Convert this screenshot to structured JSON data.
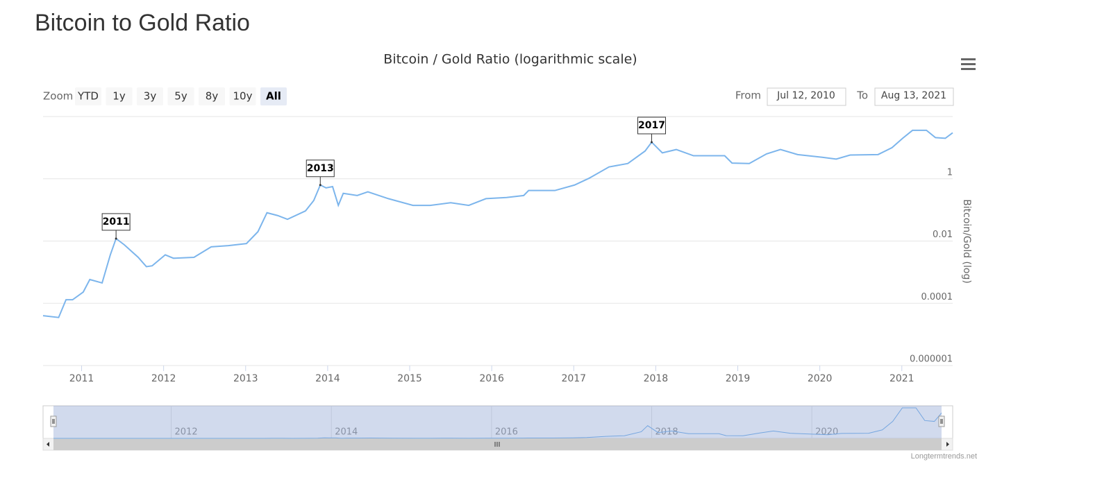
{
  "page": {
    "title": "Bitcoin to Gold Ratio"
  },
  "range_selector": {
    "zoom_label": "Zoom",
    "buttons": [
      "YTD",
      "1y",
      "3y",
      "5y",
      "8y",
      "10y",
      "All"
    ],
    "selected_button": 6,
    "from_label": "From",
    "from": "Jul 12, 2010",
    "to_label": "To",
    "to": "Aug 13, 2021"
  },
  "chart_data": {
    "type": "line",
    "title": "Bitcoin / Gold Ratio (logarithmic scale)",
    "y_label": "Bitcoin/Gold (log)",
    "y_scale": "log",
    "grid": true,
    "color": "#7cb5ec",
    "x": [
      2010.53,
      2010.72,
      2010.81,
      2010.89,
      2011.02,
      2011.1,
      2011.25,
      2011.35,
      2011.42,
      2011.52,
      2011.69,
      2011.79,
      2011.86,
      2012.02,
      2012.12,
      2012.37,
      2012.58,
      2012.79,
      2013.01,
      2013.15,
      2013.26,
      2013.39,
      2013.51,
      2013.73,
      2013.83,
      2013.91,
      2013.98,
      2014.06,
      2014.13,
      2014.19,
      2014.36,
      2014.49,
      2014.74,
      2015.04,
      2015.25,
      2015.5,
      2015.72,
      2015.93,
      2016.18,
      2016.39,
      2016.45,
      2016.77,
      2017.01,
      2017.19,
      2017.43,
      2017.66,
      2017.87,
      2017.95,
      2018.08,
      2018.25,
      2018.46,
      2018.84,
      2018.93,
      2019.14,
      2019.35,
      2019.52,
      2019.73,
      2020.03,
      2020.2,
      2020.37,
      2020.71,
      2020.88,
      2021.01,
      2021.13,
      2021.3,
      2021.41,
      2021.53,
      2021.62
    ],
    "values": [
      4e-05,
      3.5e-05,
      0.00013,
      0.00013,
      0.00023,
      0.00058,
      0.00045,
      0.0036,
      0.012,
      0.0076,
      0.003,
      0.0015,
      0.0016,
      0.0036,
      0.0028,
      0.003,
      0.0065,
      0.0071,
      0.0083,
      0.02,
      0.081,
      0.066,
      0.05,
      0.093,
      0.2,
      0.63,
      0.51,
      0.56,
      0.14,
      0.34,
      0.29,
      0.38,
      0.23,
      0.14,
      0.14,
      0.17,
      0.14,
      0.23,
      0.25,
      0.29,
      0.42,
      0.42,
      0.63,
      1.05,
      2.4,
      3.1,
      7.8,
      15,
      6.8,
      8.7,
      5.5,
      5.5,
      3.2,
      3.1,
      6.3,
      8.7,
      6,
      4.9,
      4.3,
      5.8,
      6,
      10,
      20,
      36,
      36,
      21,
      20,
      30
    ],
    "xlim": [
      2010.53,
      2021.62
    ],
    "xticks": [
      2011,
      2012,
      2013,
      2014,
      2015,
      2016,
      2017,
      2018,
      2019,
      2020,
      2021
    ],
    "ylim": [
      1e-06,
      100
    ],
    "yticks": [
      {
        "value": 1e-06,
        "label": "0.000001"
      },
      0.0001,
      0.01,
      1
    ],
    "annotations": [
      {
        "text": "2011",
        "x": 2011.42,
        "y": 0.012
      },
      {
        "text": "2013",
        "x": 2013.91,
        "y": 0.63
      },
      {
        "text": "2017",
        "x": 2017.95,
        "y": 15
      }
    ],
    "navigator": {
      "xticks": [
        2012,
        2014,
        2016,
        2018,
        2020
      ]
    }
  },
  "credit": "Longtermtrends.net"
}
